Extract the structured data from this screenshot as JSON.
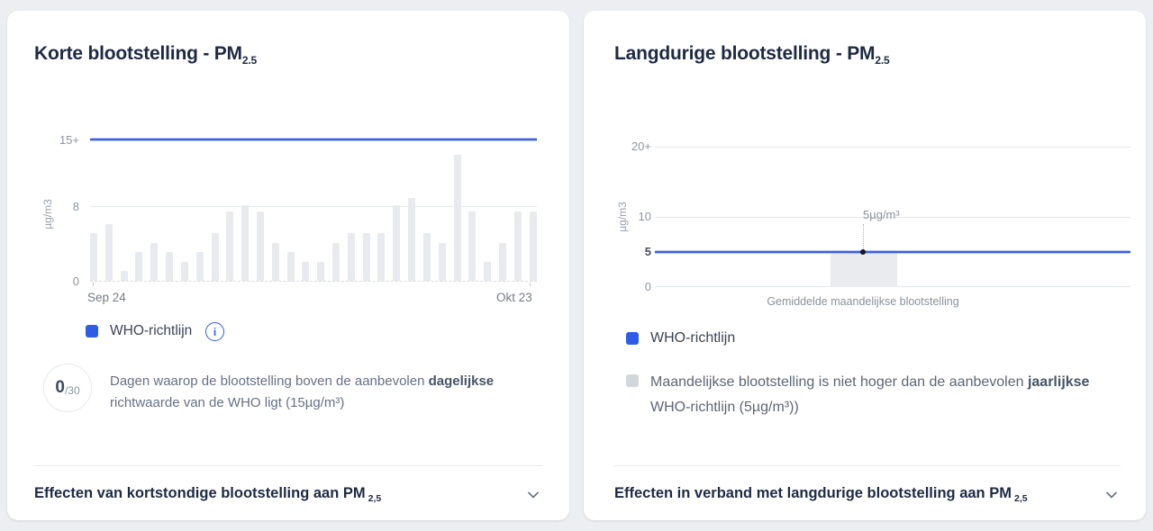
{
  "colors": {
    "accent_blue": "#2e5ce6",
    "who_line_blue": "#3d5fe2",
    "bar_gray": "#e8eaed",
    "title_navy": "#1e2a43"
  },
  "cards": {
    "short": {
      "title": "Korte blootstelling - PM",
      "title_sub": "2.5",
      "chart": {
        "ytick_top": "15+",
        "ytick_mid": "8",
        "ytick_zero": "0",
        "unit": "µg/m3",
        "x_start": "Sep 24",
        "x_end": "Okt 23"
      },
      "legend": {
        "who": "WHO-richtlijn",
        "info_icon": "i"
      },
      "badge": {
        "count": "0",
        "total": "/30"
      },
      "description": {
        "pre": "Dagen waarop de blootstelling boven de aanbevolen ",
        "bold": "dagelijkse",
        "post": " richtwaarde van de WHO ligt (15µg/m³)"
      },
      "footer": {
        "label": "Effecten van kortstondige blootstelling aan PM",
        "label_sub": "2,5"
      }
    },
    "long": {
      "title": "Langdurige blootstelling - PM",
      "title_sub": "2.5",
      "chart": {
        "ytick_top": "20+",
        "ytick_10": "10",
        "ytick_5": "5",
        "ytick_zero": "0",
        "unit": "µg/m3",
        "tooltip": "5µg/m³",
        "bar_label": "Gemiddelde maandelijkse blootstelling"
      },
      "legend": {
        "who": "WHO-richtlijn",
        "monthly_pre": "Maandelijkse blootstelling is niet hoger dan de aanbevolen ",
        "monthly_bold": "jaarlijkse",
        "monthly_post": " WHO-richtlijn (5µg/m³))"
      },
      "footer": {
        "label": "Effecten in verband met langdurige blootstelling aan PM",
        "label_sub": "2,5"
      }
    }
  },
  "chart_data": [
    {
      "type": "bar",
      "title": "Korte blootstelling - PM2.5 (dagelijks)",
      "ylabel": "µg/m3",
      "ylim": [
        0,
        15
      ],
      "yticks": [
        0,
        8,
        15
      ],
      "ytick_labels": [
        "0",
        "8",
        "15+"
      ],
      "who_guideline": 15,
      "x_range": [
        "Sep 24",
        "Okt 23"
      ],
      "values": [
        5,
        6,
        1,
        3,
        4,
        3,
        2,
        3,
        5,
        7.3,
        8,
        7.3,
        4,
        3,
        2,
        2,
        4,
        5,
        5,
        5,
        8,
        8.7,
        5,
        4,
        13.3,
        7.3,
        2,
        4,
        7.3,
        7.3
      ],
      "days_above_guideline": "0/30",
      "legend": [
        "WHO-richtlijn"
      ]
    },
    {
      "type": "bar",
      "title": "Langdurige blootstelling - PM2.5 (maandelijks)",
      "ylabel": "µg/m3",
      "ylim": [
        0,
        20
      ],
      "yticks": [
        0,
        5,
        10,
        20
      ],
      "ytick_labels": [
        "0",
        "5",
        "10",
        "20+"
      ],
      "who_guideline": 5,
      "categories": [
        "Gemiddelde maandelijkse blootstelling"
      ],
      "values": [
        5
      ],
      "annotation": "5µg/m³",
      "legend": [
        "WHO-richtlijn",
        "Maandelijkse blootstelling is niet hoger dan de aanbevolen jaarlijkse WHO-richtlijn (5µg/m³))"
      ]
    }
  ]
}
